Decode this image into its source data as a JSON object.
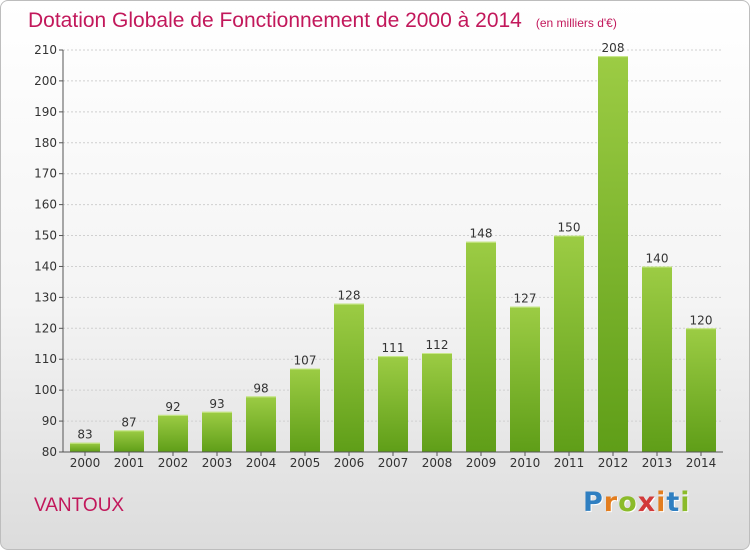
{
  "header": {
    "title": "Dotation Globale de Fonctionnement de 2000 à 2014",
    "subtitle": "(en milliers d'€)"
  },
  "footer": {
    "commune": "VANTOUX",
    "logo": [
      "P",
      "r",
      "o",
      "x",
      "i",
      "t",
      "i"
    ]
  },
  "colors": {
    "bar_top": "#9ccc44",
    "bar_bottom": "#5f9e18",
    "title": "#c2185b",
    "grid": "#d0d0d0"
  },
  "chart_data": {
    "type": "bar",
    "categories": [
      "2000",
      "2001",
      "2002",
      "2003",
      "2004",
      "2005",
      "2006",
      "2007",
      "2008",
      "2009",
      "2010",
      "2011",
      "2012",
      "2013",
      "2014"
    ],
    "values": [
      83,
      87,
      92,
      93,
      98,
      107,
      128,
      111,
      112,
      148,
      127,
      150,
      208,
      140,
      120
    ],
    "title": "Dotation Globale de Fonctionnement de 2000 à 2014",
    "subtitle": "(en milliers d'€)",
    "ylim": [
      80,
      210
    ],
    "yticks": [
      80,
      90,
      100,
      110,
      120,
      130,
      140,
      150,
      160,
      170,
      180,
      190,
      200,
      210
    ],
    "grid": true,
    "data_labels": true
  }
}
